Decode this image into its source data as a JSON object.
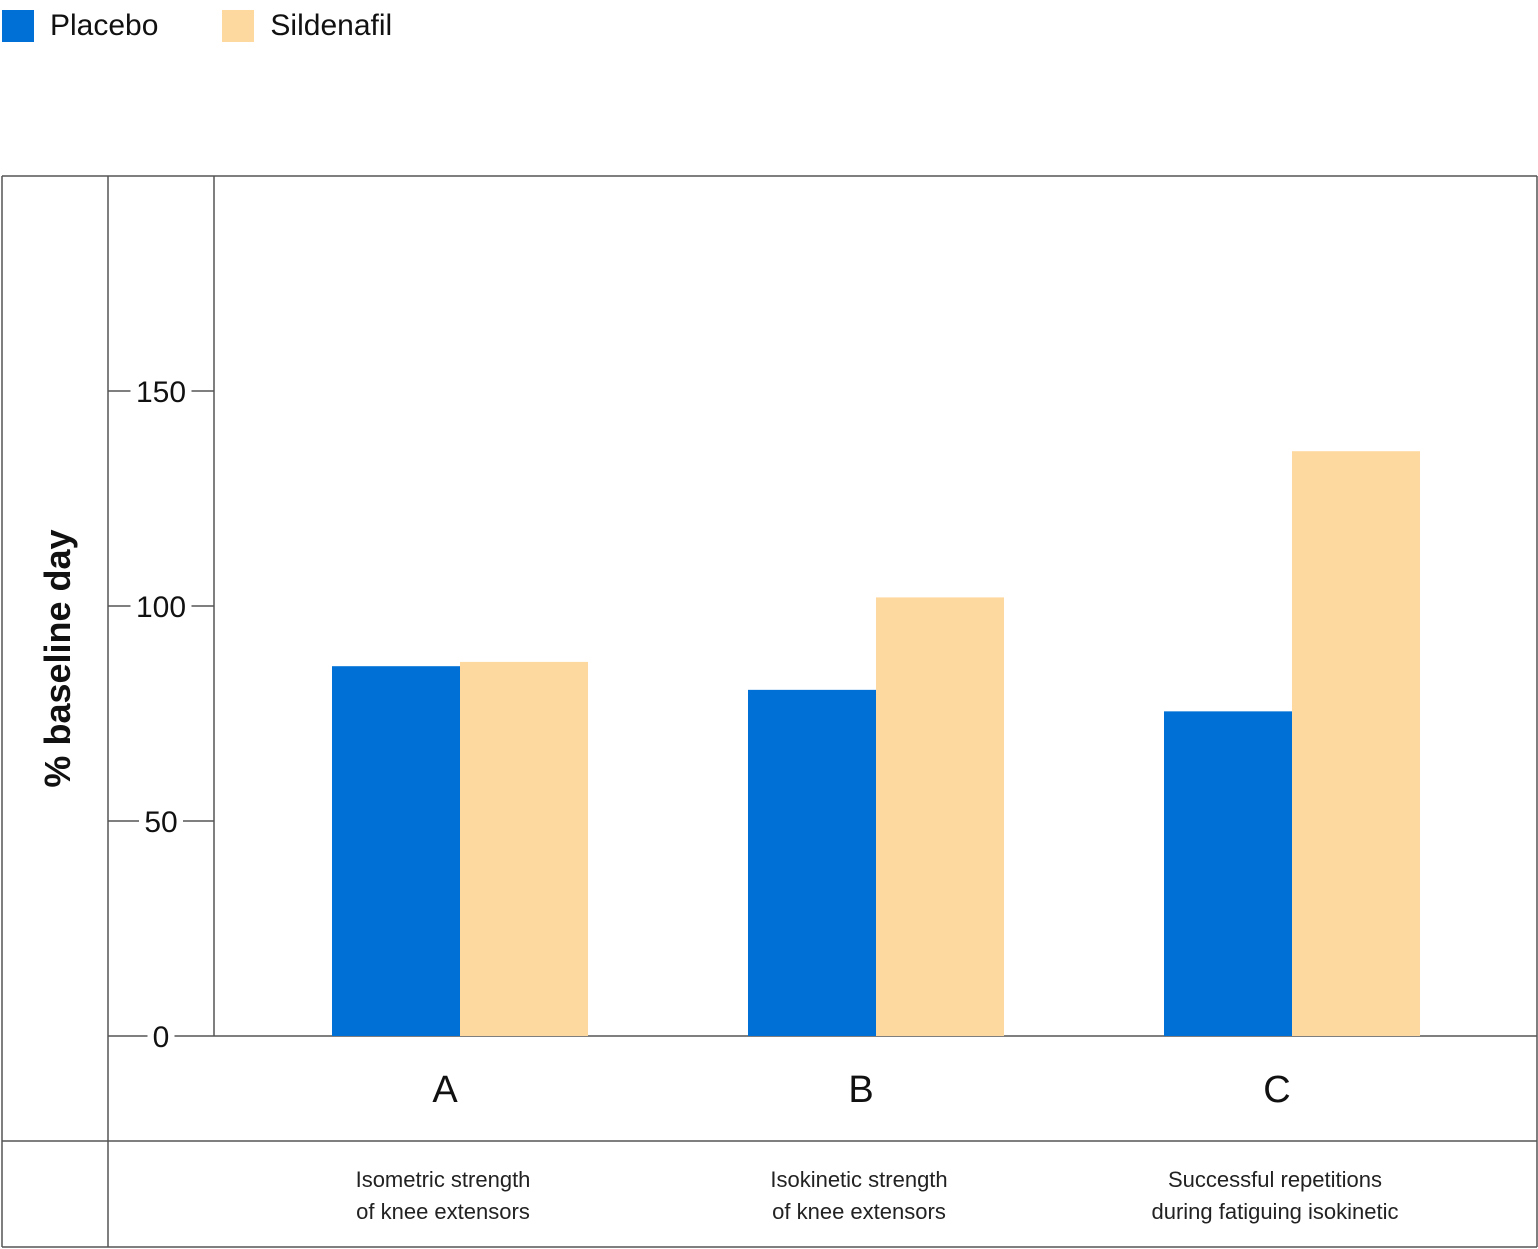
{
  "legend": {
    "placebo_label": "Placebo",
    "sildenafil_label": "Sildenafil"
  },
  "colors": {
    "placebo": "#0070d6",
    "sildenafil": "#fdd9a0",
    "grid": "#555555"
  },
  "chart_data": {
    "type": "bar",
    "title": "",
    "ylabel": "% baseline day",
    "xlabel": "",
    "ylim": [
      0,
      200
    ],
    "yticks": [
      0,
      50,
      100,
      150
    ],
    "categories": [
      "A",
      "B",
      "C"
    ],
    "category_descriptions": [
      [
        "Isometric strength",
        "of knee extensors"
      ],
      [
        "Isokinetic strength",
        "of knee extensors"
      ],
      [
        "Successful repetitions",
        "during fatiguing isokinetic"
      ]
    ],
    "series": [
      {
        "name": "Placebo",
        "values": [
          86,
          80.5,
          75.5
        ]
      },
      {
        "name": "Sildenafil",
        "values": [
          87,
          102,
          136
        ]
      }
    ],
    "legend_position": "top-left",
    "grid": false
  }
}
